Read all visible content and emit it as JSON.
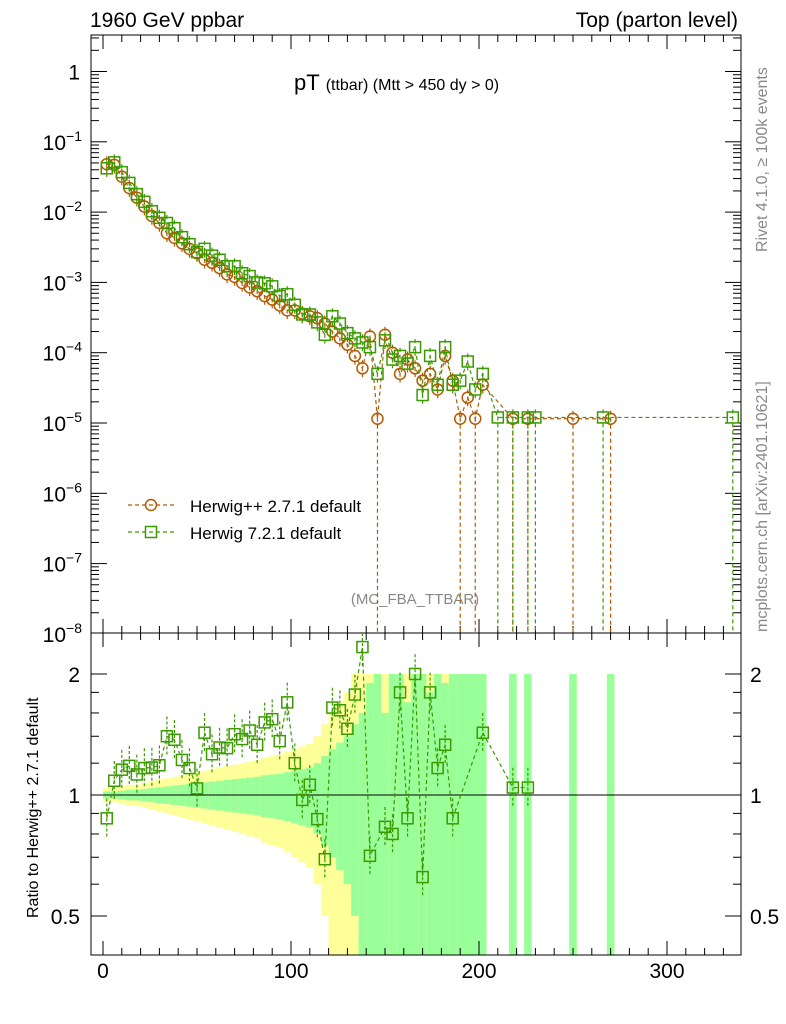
{
  "header": {
    "left": "1960 GeV ppbar",
    "right": "Top (parton level)",
    "side_top": "Rivet 4.1.0, ≥ 100k events",
    "side_bottom": "mcplots.cern.ch [arXiv:2401.10621]",
    "analysis": "(MC_FBA_TTBAR)"
  },
  "chart_data": {
    "type": "scatter",
    "title": "pT",
    "title_suffix": "(ttbar) (Mtt > 450 dy > 0)",
    "xlabel": "",
    "ylabel": "",
    "ratio_ylabel": "Ratio to Herwig++ 2.7.1 default",
    "xlim": [
      -6.4,
      339
    ],
    "ylim": [
      1e-08,
      3.2
    ],
    "yscale": "log",
    "ratio_ylim": [
      0.4,
      2.53
    ],
    "x_ticks": [
      "0",
      "100",
      "200",
      "300"
    ],
    "y_ticks": [
      {
        "base": "1",
        "exp": ""
      },
      {
        "base": "10",
        "exp": "−1"
      },
      {
        "base": "10",
        "exp": "−2"
      },
      {
        "base": "10",
        "exp": "−3"
      },
      {
        "base": "10",
        "exp": "−4"
      },
      {
        "base": "10",
        "exp": "−5"
      },
      {
        "base": "10",
        "exp": "−6"
      },
      {
        "base": "10",
        "exp": "−7"
      },
      {
        "base": "10",
        "exp": "−8"
      }
    ],
    "ratio_ticks": [
      "2",
      "1",
      "0.5"
    ],
    "legend": "left-middle",
    "series": [
      {
        "name": "Herwig++ 2.7.1 default",
        "color": "#b35a00",
        "marker": "circle",
        "x": [
          2,
          6,
          10,
          14,
          18,
          22,
          26,
          30,
          34,
          38,
          42,
          46,
          50,
          54,
          58,
          62,
          66,
          70,
          74,
          78,
          82,
          86,
          90,
          94,
          98,
          102,
          106,
          110,
          114,
          118,
          122,
          126,
          130,
          134,
          138,
          142,
          146,
          150,
          154,
          158,
          162,
          166,
          170,
          174,
          178,
          182,
          186,
          190,
          194,
          198,
          202,
          218,
          226,
          250,
          270
        ],
        "y": [
          0.048,
          0.047,
          0.032,
          0.022,
          0.016,
          0.012,
          0.0088,
          0.007,
          0.005,
          0.0043,
          0.0036,
          0.003,
          0.0026,
          0.0021,
          0.0019,
          0.0016,
          0.0013,
          0.0012,
          0.00098,
          0.00085,
          0.00075,
          0.00064,
          0.00057,
          0.00047,
          0.0004,
          0.0004,
          0.00036,
          0.00033,
          0.00031,
          0.00026,
          0.0002,
          0.00016,
          0.00013,
          9e-05,
          6e-05,
          0.00017,
          1.15e-05,
          0.00018,
          0.0001,
          5e-05,
          8e-05,
          6e-05,
          4e-05,
          5e-05,
          3e-05,
          9e-05,
          4e-05,
          1.15e-05,
          2.3e-05,
          1.15e-05,
          3.5e-05,
          1.15e-05,
          1.15e-05,
          1.15e-05,
          1.15e-05
        ],
        "band_1sigma": [
          0.02,
          0.02,
          0.025,
          0.03,
          0.03,
          0.035,
          0.04,
          0.045,
          0.05,
          0.055,
          0.06,
          0.065,
          0.07,
          0.075,
          0.08,
          0.085,
          0.09,
          0.095,
          0.1,
          0.105,
          0.11,
          0.12,
          0.125,
          0.13,
          0.14,
          0.15,
          0.16,
          0.17,
          0.2,
          0.25,
          0.3,
          0.35,
          0.4,
          0.5,
          0.6,
          0.9,
          1,
          0.6,
          1,
          1,
          0.7,
          1,
          1,
          0.8,
          1,
          0.9,
          1,
          1,
          1,
          1,
          1,
          1,
          1,
          1,
          1
        ],
        "band_2sigma": [
          0.04,
          0.04,
          0.05,
          0.06,
          0.06,
          0.07,
          0.08,
          0.09,
          0.1,
          0.11,
          0.12,
          0.13,
          0.14,
          0.15,
          0.16,
          0.17,
          0.18,
          0.19,
          0.2,
          0.21,
          0.22,
          0.24,
          0.25,
          0.26,
          0.28,
          0.3,
          0.32,
          0.34,
          0.4,
          0.5,
          0.6,
          0.7,
          0.8,
          1,
          1,
          1,
          1,
          1,
          1,
          1,
          1,
          1,
          1,
          1,
          1,
          1,
          1,
          1,
          1,
          1,
          1,
          1,
          1,
          1,
          1
        ]
      },
      {
        "name": "Herwig 7.2.1 default",
        "color": "#3a9a00",
        "marker": "square",
        "x": [
          2,
          6,
          10,
          14,
          18,
          22,
          26,
          30,
          34,
          38,
          42,
          46,
          50,
          54,
          58,
          62,
          66,
          70,
          74,
          78,
          82,
          86,
          90,
          94,
          98,
          102,
          106,
          110,
          114,
          118,
          122,
          126,
          130,
          134,
          138,
          142,
          146,
          150,
          154,
          158,
          162,
          166,
          170,
          174,
          178,
          182,
          186,
          190,
          194,
          198,
          202,
          210,
          218,
          226,
          230,
          266,
          335
        ],
        "y": [
          0.042,
          0.051,
          0.037,
          0.026,
          0.018,
          0.014,
          0.0103,
          0.0083,
          0.007,
          0.0059,
          0.0044,
          0.0035,
          0.0027,
          0.003,
          0.0024,
          0.0021,
          0.0017,
          0.0017,
          0.00135,
          0.00123,
          0.001,
          0.00097,
          0.00088,
          0.00064,
          0.00068,
          0.00048,
          0.00035,
          0.00035,
          0.00027,
          0.00018,
          0.00033,
          0.00026,
          0.00019,
          0.00016,
          0.00014,
          0.00012,
          5e-05,
          0.00015,
          8e-05,
          9e-05,
          7e-05,
          0.00012,
          2.5e-05,
          9e-05,
          3.5e-05,
          0.00012,
          3.5e-05,
          4e-05,
          7.5e-05,
          3e-05,
          5e-05,
          1.2e-05,
          1.2e-05,
          1.2e-05,
          1.2e-05,
          1.2e-05,
          1.2e-05
        ]
      }
    ]
  }
}
